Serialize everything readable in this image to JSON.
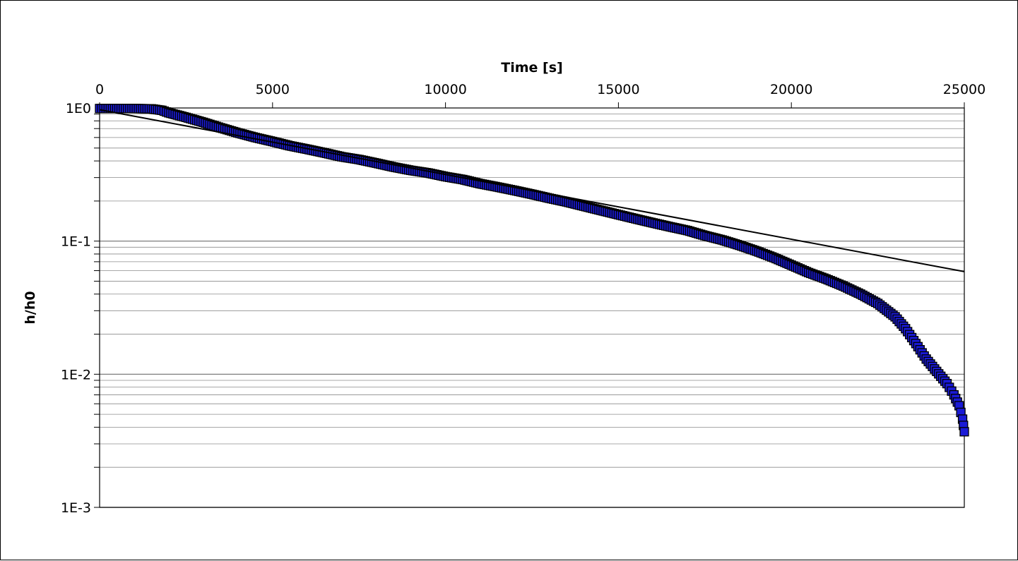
{
  "chart_data": {
    "type": "scatter",
    "title": "",
    "xlabel": "Time [s]",
    "ylabel": "h/h0",
    "x_axis_position": "top",
    "xlim": [
      0,
      25000
    ],
    "ylim": [
      0.001,
      1
    ],
    "y_scale": "log",
    "x_ticks": [
      0,
      5000,
      10000,
      15000,
      20000,
      25000
    ],
    "x_tick_labels": [
      "0",
      "5000",
      "10000",
      "15000",
      "20000",
      "25000"
    ],
    "y_ticks": [
      1,
      0.1,
      0.01,
      0.001
    ],
    "y_tick_labels": [
      "1E0",
      "1E-1",
      "1E-2",
      "1E-3"
    ],
    "grid": "horizontal minor and major lines on log scale",
    "legend": "none",
    "series": [
      {
        "kind": "markers",
        "marker": "square",
        "color": "#1a1ad6",
        "edge_color": "#000000",
        "points": [
          [
            0,
            0.99
          ],
          [
            500,
            0.99
          ],
          [
            1000,
            0.99
          ],
          [
            1500,
            0.985
          ],
          [
            1800,
            0.96
          ],
          [
            2000,
            0.92
          ],
          [
            2500,
            0.85
          ],
          [
            3000,
            0.78
          ],
          [
            3500,
            0.71
          ],
          [
            4000,
            0.65
          ],
          [
            4500,
            0.6
          ],
          [
            5000,
            0.56
          ],
          [
            5500,
            0.52
          ],
          [
            6000,
            0.49
          ],
          [
            6500,
            0.46
          ],
          [
            7000,
            0.43
          ],
          [
            7500,
            0.41
          ],
          [
            8000,
            0.385
          ],
          [
            8500,
            0.36
          ],
          [
            9000,
            0.34
          ],
          [
            9500,
            0.325
          ],
          [
            10000,
            0.305
          ],
          [
            10500,
            0.29
          ],
          [
            11000,
            0.27
          ],
          [
            11500,
            0.255
          ],
          [
            12000,
            0.24
          ],
          [
            12500,
            0.225
          ],
          [
            13000,
            0.21
          ],
          [
            13500,
            0.197
          ],
          [
            14000,
            0.183
          ],
          [
            14500,
            0.17
          ],
          [
            15000,
            0.158
          ],
          [
            15500,
            0.147
          ],
          [
            16000,
            0.137
          ],
          [
            16500,
            0.128
          ],
          [
            17000,
            0.12
          ],
          [
            17500,
            0.11
          ],
          [
            18000,
            0.102
          ],
          [
            18500,
            0.093
          ],
          [
            19000,
            0.084
          ],
          [
            19500,
            0.075
          ],
          [
            20000,
            0.066
          ],
          [
            20500,
            0.058
          ],
          [
            21000,
            0.052
          ],
          [
            21500,
            0.046
          ],
          [
            22000,
            0.04
          ],
          [
            22500,
            0.034
          ],
          [
            23000,
            0.027
          ],
          [
            23300,
            0.022
          ],
          [
            23600,
            0.017
          ],
          [
            23900,
            0.013
          ],
          [
            24200,
            0.0105
          ],
          [
            24500,
            0.0085
          ],
          [
            24700,
            0.007
          ],
          [
            24850,
            0.0058
          ],
          [
            24950,
            0.0046
          ],
          [
            25000,
            0.0037
          ]
        ]
      },
      {
        "kind": "line",
        "color": "#000000",
        "x": [
          0,
          25000
        ],
        "y": [
          0.97,
          0.059
        ]
      }
    ]
  }
}
